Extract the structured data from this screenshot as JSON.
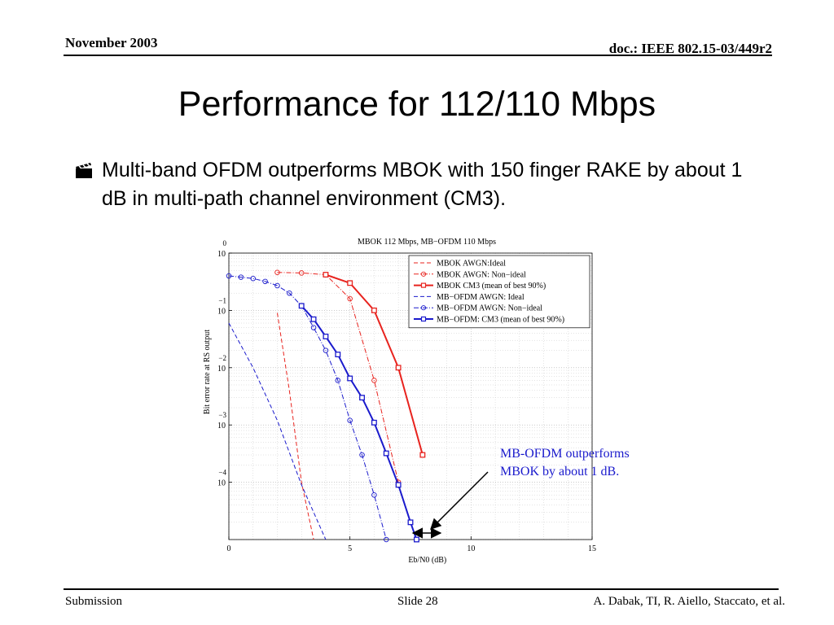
{
  "header": {
    "date": "November 2003",
    "doc": "doc.: IEEE 802.15-03/449r2"
  },
  "title": "Performance for 112/110 Mbps",
  "bullet": {
    "icon": "clapperboard-icon",
    "text": "Multi-band OFDM outperforms MBOK with 150 finger RAKE by about 1 dB in multi-path channel environment (CM3)."
  },
  "callout": {
    "line1": "MB-OFDM outperforms",
    "line2": "MBOK by about 1 dB."
  },
  "footer": {
    "left": "Submission",
    "center": "Slide 28",
    "right": "A. Dabak, TI, R. Aiello, Staccato, et al."
  },
  "colors": {
    "red": "#e8231e",
    "blue": "#1a1acc"
  },
  "chart_data": {
    "type": "line",
    "title": "MBOK 112 Mbps, MB−OFDM 110 Mbps",
    "xlabel": "Eb/N0 (dB)",
    "ylabel": "Bit error rate at RS output",
    "xlim": [
      0,
      15
    ],
    "ylim": [
      1e-05,
      1
    ],
    "yscale": "log",
    "grid": true,
    "legend_position": "top-right",
    "x_ticks": [
      "0",
      "5",
      "10",
      "15"
    ],
    "y_ticks": [
      {
        "base": "10",
        "exp": "0"
      },
      {
        "base": "10",
        "exp": "−1"
      },
      {
        "base": "10",
        "exp": "−2"
      },
      {
        "base": "10",
        "exp": "−3"
      },
      {
        "base": "10",
        "exp": "−4"
      }
    ],
    "series": [
      {
        "name": "MBOK AWGN:Ideal",
        "color": "#e8231e",
        "style": "dashed",
        "marker": "none",
        "x": [
          2.0,
          2.5,
          3.0,
          3.5
        ],
        "y": [
          0.09,
          0.004,
          0.0001,
          1e-05
        ]
      },
      {
        "name": "MBOK AWGN: Non−ideal",
        "color": "#e8231e",
        "style": "dashdot",
        "marker": "circle",
        "x": [
          2,
          3,
          4,
          5,
          6,
          7
        ],
        "y": [
          0.46,
          0.45,
          0.42,
          0.16,
          0.006,
          0.0001
        ]
      },
      {
        "name": "MBOK CM3 (mean of best 90%)",
        "color": "#e8231e",
        "style": "solid",
        "marker": "square",
        "x": [
          4,
          5,
          6,
          7,
          8
        ],
        "y": [
          0.42,
          0.3,
          0.1,
          0.01,
          0.0003
        ]
      },
      {
        "name": "MB−OFDM AWGN: Ideal",
        "color": "#1a1acc",
        "style": "dashed",
        "marker": "none",
        "x": [
          0,
          1,
          2,
          3,
          4
        ],
        "y": [
          0.06,
          0.01,
          0.0012,
          9e-05,
          1e-05
        ]
      },
      {
        "name": "MB−OFDM AWGN: Non−ideal",
        "color": "#1a1acc",
        "style": "dashdot",
        "marker": "circle",
        "x": [
          0,
          0.5,
          1,
          1.5,
          2,
          2.5,
          3,
          3.5,
          4,
          4.5,
          5,
          5.5,
          6,
          6.5
        ],
        "y": [
          0.4,
          0.38,
          0.36,
          0.32,
          0.27,
          0.2,
          0.12,
          0.05,
          0.02,
          0.006,
          0.0012,
          0.0003,
          6e-05,
          1e-05
        ]
      },
      {
        "name": "MB−OFDM: CM3 (mean of best 90%)",
        "color": "#1a1acc",
        "style": "solid",
        "marker": "square",
        "x": [
          3,
          3.5,
          4,
          4.5,
          5,
          5.5,
          6,
          6.5,
          7,
          7.5,
          7.75
        ],
        "y": [
          0.12,
          0.07,
          0.035,
          0.017,
          0.0065,
          0.003,
          0.0011,
          0.00032,
          9e-05,
          2e-05,
          1e-05
        ]
      }
    ]
  }
}
